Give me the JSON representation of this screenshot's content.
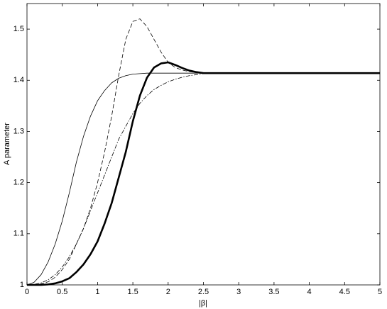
{
  "chart_data": {
    "type": "line",
    "xlabel": "|β|",
    "ylabel": "A parameter",
    "x": [
      0,
      0.1,
      0.2,
      0.3,
      0.4,
      0.5,
      0.6,
      0.7,
      0.8,
      0.9,
      1,
      1.1,
      1.2,
      1.3,
      1.4,
      1.5,
      1.6,
      1.7,
      1.8,
      1.9,
      2,
      2.1,
      2.2,
      2.3,
      2.4,
      2.5,
      2.6,
      3,
      3.5,
      4,
      4.5,
      5
    ],
    "series": [
      {
        "color": "#000000",
        "width": 0.8,
        "dash": "solid",
        "values": [
          1.0,
          1.005,
          1.02,
          1.045,
          1.08,
          1.125,
          1.18,
          1.24,
          1.29,
          1.33,
          1.36,
          1.38,
          1.395,
          1.404,
          1.409,
          1.412,
          1.413,
          1.414,
          1.414,
          1.414,
          1.414,
          1.414,
          1.414,
          1.414,
          1.414,
          1.414,
          1.414,
          1.414,
          1.414,
          1.414,
          1.414,
          1.414
        ]
      },
      {
        "color": "#000000",
        "width": 0.8,
        "dash": "dashed",
        "values": [
          1.0,
          1.0,
          1.002,
          1.006,
          1.015,
          1.03,
          1.05,
          1.08,
          1.11,
          1.15,
          1.2,
          1.26,
          1.33,
          1.41,
          1.48,
          1.515,
          1.52,
          1.505,
          1.48,
          1.455,
          1.435,
          1.425,
          1.42,
          1.417,
          1.415,
          1.414,
          1.414,
          1.414,
          1.414,
          1.414,
          1.414,
          1.414
        ]
      },
      {
        "color": "#000000",
        "width": 0.8,
        "dash": "dashdot",
        "values": [
          1.0,
          1.001,
          1.004,
          1.01,
          1.02,
          1.035,
          1.055,
          1.08,
          1.11,
          1.145,
          1.18,
          1.215,
          1.25,
          1.285,
          1.31,
          1.335,
          1.355,
          1.37,
          1.382,
          1.39,
          1.397,
          1.402,
          1.406,
          1.409,
          1.411,
          1.413,
          1.414,
          1.414,
          1.414,
          1.414,
          1.414,
          1.414
        ]
      },
      {
        "color": "#000000",
        "width": 2.6,
        "dash": "solid",
        "values": [
          1.0,
          1.0,
          1.0,
          1.001,
          1.003,
          1.007,
          1.013,
          1.025,
          1.04,
          1.06,
          1.085,
          1.12,
          1.16,
          1.21,
          1.26,
          1.32,
          1.37,
          1.405,
          1.425,
          1.433,
          1.435,
          1.43,
          1.424,
          1.419,
          1.416,
          1.414,
          1.414,
          1.414,
          1.414,
          1.414,
          1.414,
          1.414
        ]
      }
    ],
    "xlim": [
      0,
      5
    ],
    "xticks": [
      0,
      0.5,
      1,
      1.5,
      2,
      2.5,
      3,
      3.5,
      4,
      4.5,
      5
    ],
    "ylim": [
      1,
      1.55
    ],
    "yticks": [
      1,
      1.1,
      1.2,
      1.3,
      1.4,
      1.5
    ],
    "grid": false
  }
}
